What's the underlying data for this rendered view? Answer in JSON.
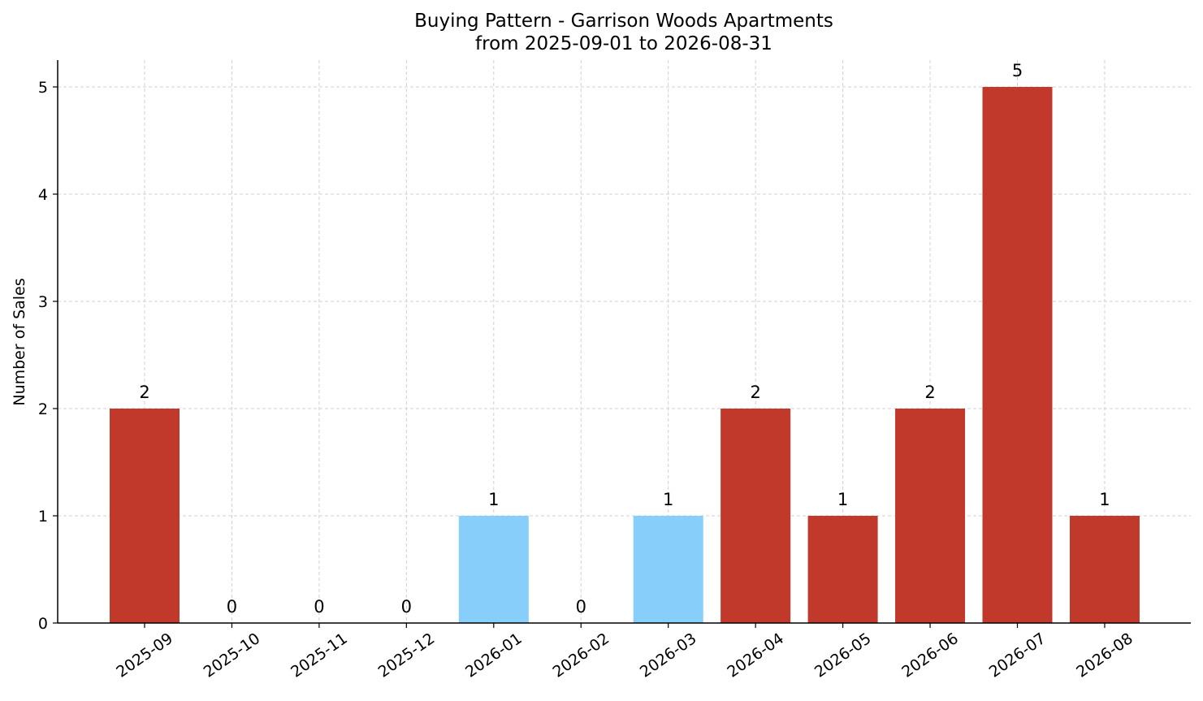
{
  "chart_data": {
    "type": "bar",
    "title": "Buying Pattern - Garrison Woods Apartments",
    "subtitle": "from 2025-09-01 to 2026-08-31",
    "xlabel": "",
    "ylabel": "Number of Sales",
    "categories": [
      "2025-09",
      "2025-10",
      "2025-11",
      "2025-12",
      "2026-01",
      "2026-02",
      "2026-03",
      "2026-04",
      "2026-05",
      "2026-06",
      "2026-07",
      "2026-08"
    ],
    "values": [
      2,
      0,
      0,
      0,
      1,
      0,
      1,
      2,
      1,
      2,
      5,
      1
    ],
    "bar_colors": [
      "#c0392b",
      "#c0392b",
      "#c0392b",
      "#c0392b",
      "#87cefa",
      "#c0392b",
      "#87cefa",
      "#c0392b",
      "#c0392b",
      "#c0392b",
      "#c0392b",
      "#c0392b"
    ],
    "yticks": [
      0,
      1,
      2,
      3,
      4,
      5
    ],
    "ylim": [
      0,
      5.25
    ],
    "grid": true
  }
}
